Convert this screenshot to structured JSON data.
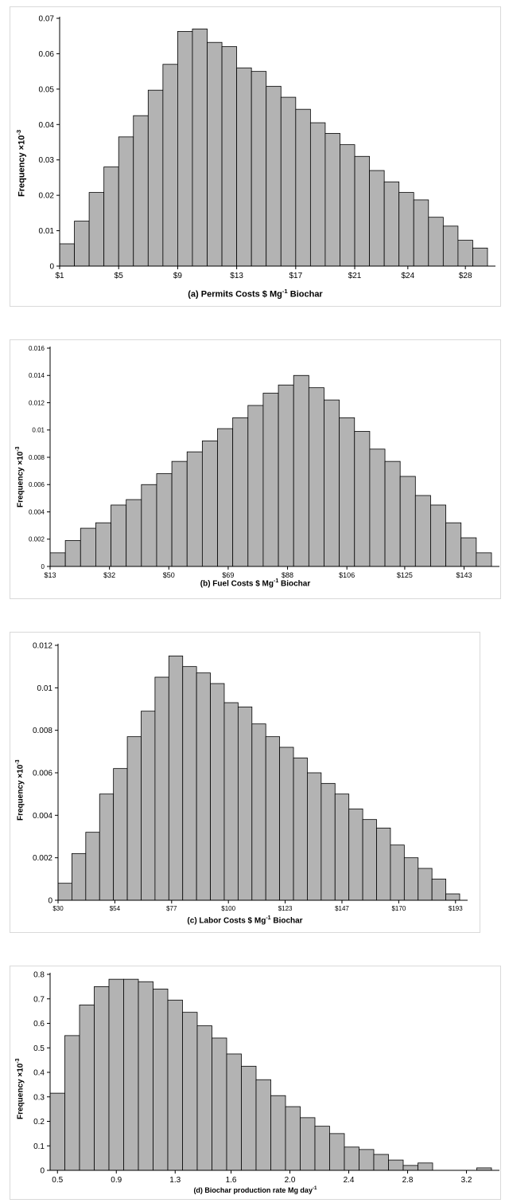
{
  "charts": [
    {
      "chart_data": {
        "type": "bar",
        "title": "",
        "xlabel": "(a) Permits Costs $ Mg",
        "xlabel_sup": "-1",
        "xlabel_tail": " Biochar",
        "ylabel": "Frequency ×10",
        "ylabel_sup": "-3",
        "ylim": [
          0,
          0.07
        ],
        "yticks": [
          "0",
          "0.01",
          "0.02",
          "0.03",
          "0.04",
          "0.05",
          "0.06",
          "0.07"
        ],
        "xticks": [
          {
            "label": "$1",
            "bin": 0
          },
          {
            "label": "$5",
            "bin": 4
          },
          {
            "label": "$9",
            "bin": 8
          },
          {
            "label": "$13",
            "bin": 12
          },
          {
            "label": "$17",
            "bin": 16
          },
          {
            "label": "$21",
            "bin": 20
          },
          {
            "label": "$24",
            "bin": 23.6
          },
          {
            "label": "$28",
            "bin": 27.5
          }
        ],
        "values": [
          0.0063,
          0.0127,
          0.0208,
          0.028,
          0.0365,
          0.0425,
          0.0497,
          0.057,
          0.0663,
          0.067,
          0.0632,
          0.062,
          0.056,
          0.055,
          0.0508,
          0.0477,
          0.0443,
          0.0405,
          0.0375,
          0.0343,
          0.031,
          0.027,
          0.0238,
          0.0208,
          0.0187,
          0.0138,
          0.0113,
          0.0073,
          0.0051
        ],
        "grid": false,
        "legend": "none",
        "bar_color": "#b3b3b3"
      }
    },
    {
      "chart_data": {
        "type": "bar",
        "title": "",
        "xlabel": "(b) Fuel Costs $ Mg",
        "xlabel_sup": "-1",
        "xlabel_tail": " Biochar",
        "ylabel": "Frequency ×10",
        "ylabel_sup": "-3",
        "ylim": [
          0,
          0.016
        ],
        "yticks": [
          "0",
          "0.002",
          "0.004",
          "0.006",
          "0.008",
          "0.01",
          "0.012",
          "0.014",
          "0.016"
        ],
        "xticks": [
          {
            "label": "$13",
            "bin": 0
          },
          {
            "label": "$32",
            "bin": 3.9
          },
          {
            "label": "$50",
            "bin": 7.8
          },
          {
            "label": "$69",
            "bin": 11.7
          },
          {
            "label": "$88",
            "bin": 15.6
          },
          {
            "label": "$106",
            "bin": 19.5
          },
          {
            "label": "$125",
            "bin": 23.3
          },
          {
            "label": "$143",
            "bin": 27.2
          }
        ],
        "values": [
          0.001,
          0.0019,
          0.0028,
          0.0032,
          0.0045,
          0.0049,
          0.006,
          0.0068,
          0.0077,
          0.0084,
          0.0092,
          0.0101,
          0.0109,
          0.0118,
          0.0127,
          0.0133,
          0.014,
          0.0131,
          0.0122,
          0.0109,
          0.0099,
          0.0086,
          0.0077,
          0.0066,
          0.0052,
          0.0045,
          0.0032,
          0.0021,
          0.001
        ],
        "grid": false,
        "legend": "none",
        "bar_color": "#b3b3b3"
      }
    },
    {
      "chart_data": {
        "type": "bar",
        "title": "",
        "xlabel": "(c) Labor Costs $ Mg",
        "xlabel_sup": "-1",
        "xlabel_tail": " Biochar",
        "ylabel": "Frequency ×10",
        "ylabel_sup": "-3",
        "ylim": [
          0,
          0.012
        ],
        "yticks": [
          "0",
          "0.002",
          "0.004",
          "0.006",
          "0.008",
          "0.01",
          "0.012"
        ],
        "xticks": [
          {
            "label": "$30",
            "bin": 0
          },
          {
            "label": "$54",
            "bin": 4.1
          },
          {
            "label": "$77",
            "bin": 8.2
          },
          {
            "label": "$100",
            "bin": 12.3
          },
          {
            "label": "$123",
            "bin": 16.4
          },
          {
            "label": "$147",
            "bin": 20.5
          },
          {
            "label": "$170",
            "bin": 24.6
          },
          {
            "label": "$193",
            "bin": 28.7
          }
        ],
        "values": [
          0.0008,
          0.0022,
          0.0032,
          0.005,
          0.0062,
          0.0077,
          0.0089,
          0.0105,
          0.0115,
          0.011,
          0.0107,
          0.0102,
          0.0093,
          0.0091,
          0.0083,
          0.0077,
          0.0072,
          0.0067,
          0.006,
          0.0055,
          0.005,
          0.0043,
          0.0038,
          0.0034,
          0.0026,
          0.002,
          0.0015,
          0.001,
          0.0003
        ],
        "grid": false,
        "legend": "none",
        "bar_color": "#b3b3b3"
      }
    },
    {
      "chart_data": {
        "type": "bar",
        "title": "",
        "xlabel": "(d) Biochar production rate Mg day",
        "xlabel_sup": "-1",
        "xlabel_tail": "",
        "ylabel": "Frequency ×10",
        "ylabel_sup": "-3",
        "ylim": [
          0,
          0.8
        ],
        "yticks": [
          "0",
          "0.1",
          "0.2",
          "0.3",
          "0.4",
          "0.5",
          "0.6",
          "0.7",
          "0.8"
        ],
        "xticks": [
          {
            "label": "0.5",
            "bin": 0.5
          },
          {
            "label": "0.9",
            "bin": 4.5
          },
          {
            "label": "1.3",
            "bin": 8.5
          },
          {
            "label": "1.6",
            "bin": 12.3
          },
          {
            "label": "2.0",
            "bin": 16.3
          },
          {
            "label": "2.4",
            "bin": 20.3
          },
          {
            "label": "2.8",
            "bin": 24.3
          },
          {
            "label": "3.2",
            "bin": 28.3
          }
        ],
        "values": [
          0.315,
          0.55,
          0.675,
          0.75,
          0.78,
          0.78,
          0.77,
          0.74,
          0.695,
          0.645,
          0.59,
          0.54,
          0.475,
          0.425,
          0.37,
          0.305,
          0.26,
          0.215,
          0.18,
          0.15,
          0.095,
          0.085,
          0.065,
          0.042,
          0.02,
          0.03,
          0.0,
          0.0,
          0.0,
          0.01
        ],
        "grid": false,
        "legend": "none",
        "bar_color": "#b3b3b3"
      }
    }
  ]
}
